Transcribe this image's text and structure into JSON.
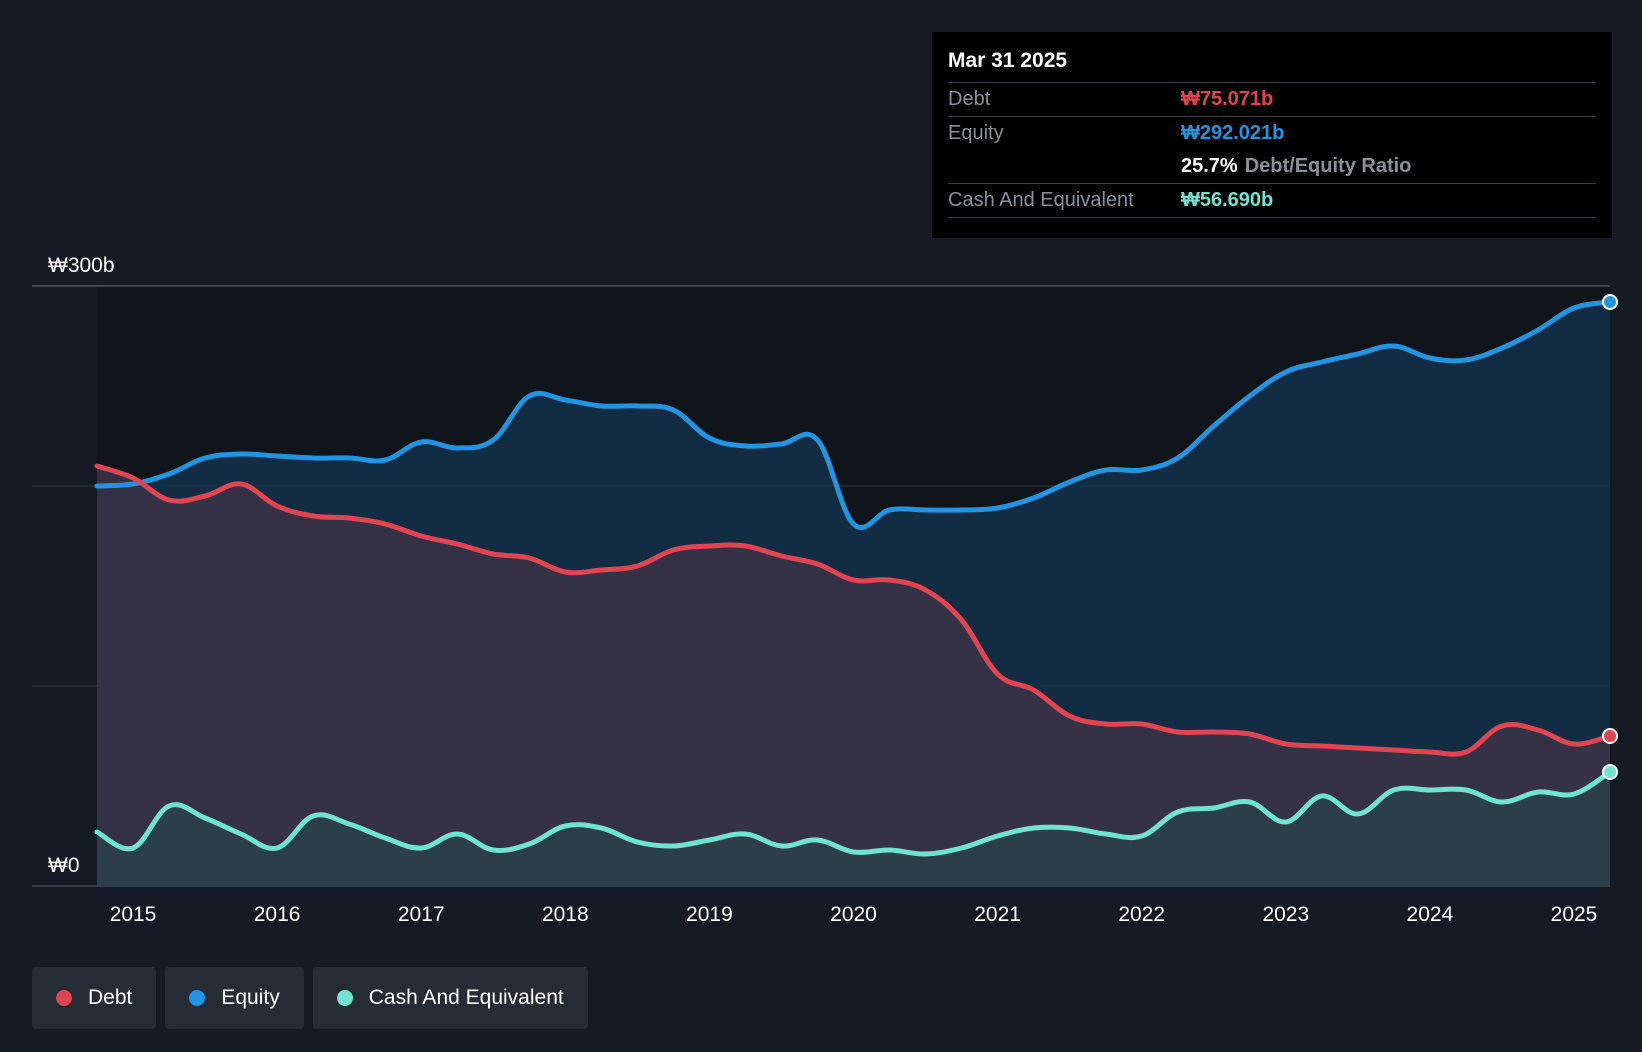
{
  "chart_data": {
    "type": "area",
    "currency_unit": "₩ billions",
    "y_ticks": [
      {
        "value": 300,
        "label": "₩300b"
      },
      {
        "value": 0,
        "label": "₩0"
      }
    ],
    "ylim": [
      0,
      300
    ],
    "gridlines": [
      0,
      100,
      200,
      300
    ],
    "xlim": [
      2014.75,
      2025.25
    ],
    "x_ticks": [
      {
        "value": 2015,
        "label": "2015"
      },
      {
        "value": 2016,
        "label": "2016"
      },
      {
        "value": 2017,
        "label": "2017"
      },
      {
        "value": 2018,
        "label": "2018"
      },
      {
        "value": 2019,
        "label": "2019"
      },
      {
        "value": 2020,
        "label": "2020"
      },
      {
        "value": 2021,
        "label": "2021"
      },
      {
        "value": 2022,
        "label": "2022"
      },
      {
        "value": 2023,
        "label": "2023"
      },
      {
        "value": 2024,
        "label": "2024"
      },
      {
        "value": 2025,
        "label": "2025"
      }
    ],
    "series": [
      {
        "name": "Equity",
        "color": "#2394df",
        "fill": "#13304a",
        "x": [
          2014.75,
          2015.0,
          2015.25,
          2015.5,
          2015.75,
          2016.0,
          2016.25,
          2016.5,
          2016.75,
          2017.0,
          2017.25,
          2017.5,
          2017.75,
          2018.0,
          2018.25,
          2018.5,
          2018.75,
          2019.0,
          2019.25,
          2019.5,
          2019.75,
          2020.0,
          2020.25,
          2020.5,
          2020.75,
          2021.0,
          2021.25,
          2021.5,
          2021.75,
          2022.0,
          2022.25,
          2022.5,
          2022.75,
          2023.0,
          2023.25,
          2023.5,
          2023.75,
          2024.0,
          2024.25,
          2024.5,
          2024.75,
          2025.0,
          2025.25
        ],
        "values": [
          200,
          201,
          206,
          214,
          216,
          215,
          214,
          214,
          213,
          222,
          219,
          223,
          245,
          243,
          240,
          240,
          238,
          224,
          220,
          221,
          223,
          181,
          188,
          188,
          188,
          189,
          194,
          202,
          208,
          208,
          214,
          230,
          245,
          257,
          262,
          266,
          270,
          264,
          263,
          269,
          278,
          289,
          292
        ]
      },
      {
        "name": "Debt",
        "color": "#e04451",
        "fill": "#3b3444",
        "x": [
          2014.75,
          2015.0,
          2015.25,
          2015.5,
          2015.75,
          2016.0,
          2016.25,
          2016.5,
          2016.75,
          2017.0,
          2017.25,
          2017.5,
          2017.75,
          2018.0,
          2018.25,
          2018.5,
          2018.75,
          2019.0,
          2019.25,
          2019.5,
          2019.75,
          2020.0,
          2020.25,
          2020.5,
          2020.75,
          2021.0,
          2021.25,
          2021.5,
          2021.75,
          2022.0,
          2022.25,
          2022.5,
          2022.75,
          2023.0,
          2023.25,
          2023.5,
          2023.75,
          2024.0,
          2024.25,
          2024.5,
          2024.75,
          2025.0,
          2025.25
        ],
        "values": [
          210,
          204,
          193,
          195,
          201,
          190,
          185,
          184,
          181,
          175,
          171,
          166,
          164,
          157,
          158,
          160,
          168,
          170,
          170,
          165,
          161,
          153,
          153,
          148,
          133,
          106,
          98,
          85,
          81,
          81,
          77,
          77,
          76,
          71,
          70,
          69,
          68,
          67,
          67,
          80,
          78,
          71,
          75
        ]
      },
      {
        "name": "Cash And Equivalent",
        "color": "#6fe3d0",
        "fill": "#2b4148",
        "x": [
          2014.75,
          2015.0,
          2015.25,
          2015.5,
          2015.75,
          2016.0,
          2016.25,
          2016.5,
          2016.75,
          2017.0,
          2017.25,
          2017.5,
          2017.75,
          2018.0,
          2018.25,
          2018.5,
          2018.75,
          2019.0,
          2019.25,
          2019.5,
          2019.75,
          2020.0,
          2020.25,
          2020.5,
          2020.75,
          2021.0,
          2021.25,
          2021.5,
          2021.75,
          2022.0,
          2022.25,
          2022.5,
          2022.75,
          2023.0,
          2023.25,
          2023.5,
          2023.75,
          2024.0,
          2024.25,
          2024.5,
          2024.75,
          2025.0,
          2025.25
        ],
        "values": [
          27,
          19,
          40,
          34,
          26,
          19,
          35,
          31,
          24,
          19,
          26,
          18,
          21,
          30,
          29,
          22,
          20,
          23,
          26,
          20,
          23,
          17,
          18,
          16,
          19,
          25,
          29,
          29,
          26,
          25,
          37,
          39,
          42,
          32,
          45,
          36,
          48,
          48,
          48,
          42,
          47,
          46,
          57
        ]
      }
    ],
    "tooltip": {
      "date": "Mar 31 2025",
      "rows": [
        {
          "label": "Debt",
          "value": "₩75.071b",
          "color": "#e04451"
        },
        {
          "label": "Equity",
          "value": "₩292.021b",
          "color": "#2394df"
        },
        {
          "ratio_value": "25.7%",
          "ratio_label": "Debt/Equity Ratio"
        },
        {
          "label": "Cash And Equivalent",
          "value": "₩56.690b",
          "color": "#6fe3d0"
        }
      ]
    },
    "legend": [
      {
        "label": "Debt",
        "color": "#e04451"
      },
      {
        "label": "Equity",
        "color": "#2394df"
      },
      {
        "label": "Cash And Equivalent",
        "color": "#6fe3d0"
      }
    ]
  }
}
